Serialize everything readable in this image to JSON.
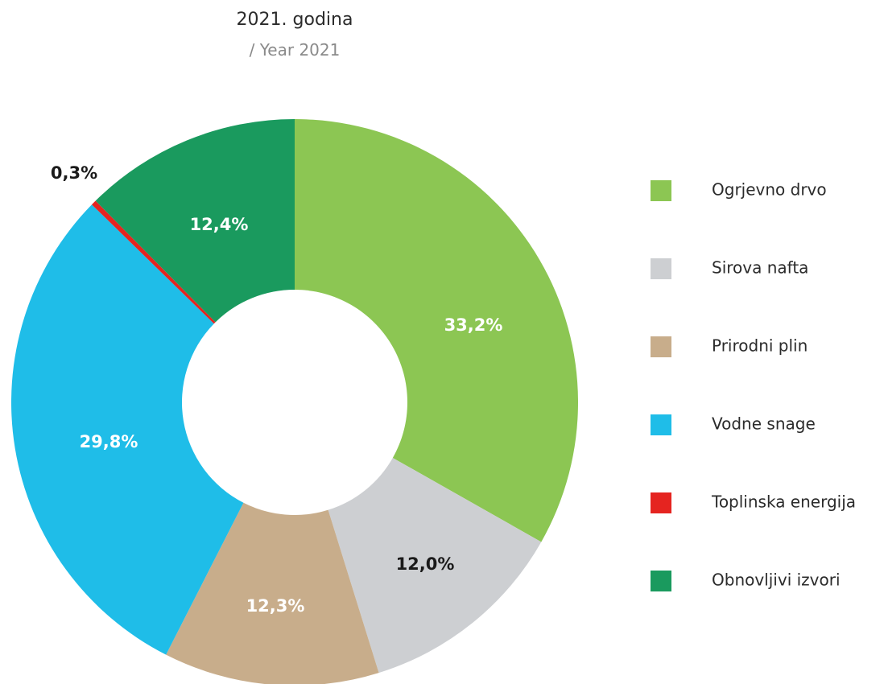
{
  "chart_data": {
    "type": "pie",
    "title": "2021. godina",
    "subtitle": "/ Year 2021",
    "categories": [
      "Ogrjevno drvo",
      "Sirova nafta",
      "Prirodni plin",
      "Vodne snage",
      "Toplinska energija",
      "Obnovljivi izvori"
    ],
    "values": [
      33.2,
      12.0,
      12.3,
      29.8,
      0.3,
      12.4
    ],
    "labels": [
      "33,2%",
      "12,0%",
      "12,3%",
      "29,8%",
      "0,3%",
      "12,4%"
    ],
    "colors": [
      "#8CC653",
      "#CDCFD2",
      "#C8AD8B",
      "#1FBDE8",
      "#E52420",
      "#1A9A5E"
    ],
    "label_colors": [
      "#ffffff",
      "#1a1a1a",
      "#ffffff",
      "#ffffff",
      "#1a1a1a",
      "#ffffff"
    ],
    "donut": true,
    "legend_position": "right"
  }
}
